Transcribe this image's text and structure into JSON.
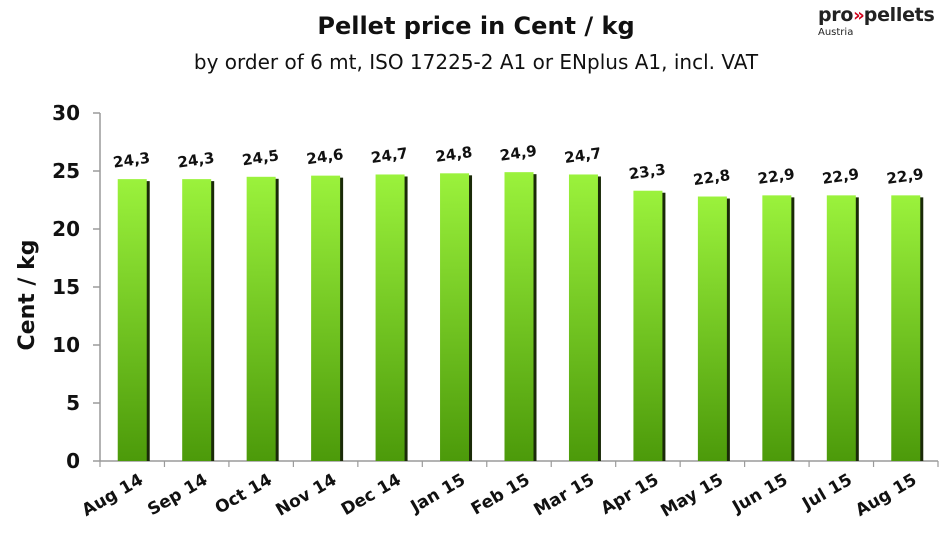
{
  "title": "Pellet price in  Cent / kg",
  "subtitle": "by order of 6 mt, ISO 17225-2 A1 or ENplus A1, incl. VAT",
  "logo": {
    "brand_prefix": "pro",
    "brand_arrows": "»",
    "brand_suffix": "pellets",
    "region": "Austria"
  },
  "chart_data": {
    "type": "bar",
    "ylabel": "Cent / kg",
    "xlabel": "",
    "ylim": [
      0,
      30
    ],
    "yticks": [
      0,
      5,
      10,
      15,
      20,
      25,
      30
    ],
    "grid": false,
    "categories": [
      "Aug 14",
      "Sep 14",
      "Oct 14",
      "Nov 14",
      "Dec 14",
      "Jan 15",
      "Feb 15",
      "Mar 15",
      "Apr 15",
      "May 15",
      "Jun 15",
      "Jul 15",
      "Aug 15"
    ],
    "values": [
      24.3,
      24.3,
      24.5,
      24.6,
      24.7,
      24.8,
      24.9,
      24.7,
      23.3,
      22.8,
      22.9,
      22.9,
      22.9
    ],
    "value_labels": [
      "24,3",
      "24,3",
      "24,5",
      "24,6",
      "24,7",
      "24,8",
      "24,9",
      "24,7",
      "23,3",
      "22,8",
      "22,9",
      "22,9",
      "22,9"
    ],
    "colors": {
      "bar_top": "#9bf23c",
      "bar_bottom": "#4c9a0a",
      "bar_shadow": "#1a2a08",
      "axis": "#9a9a9a"
    }
  }
}
